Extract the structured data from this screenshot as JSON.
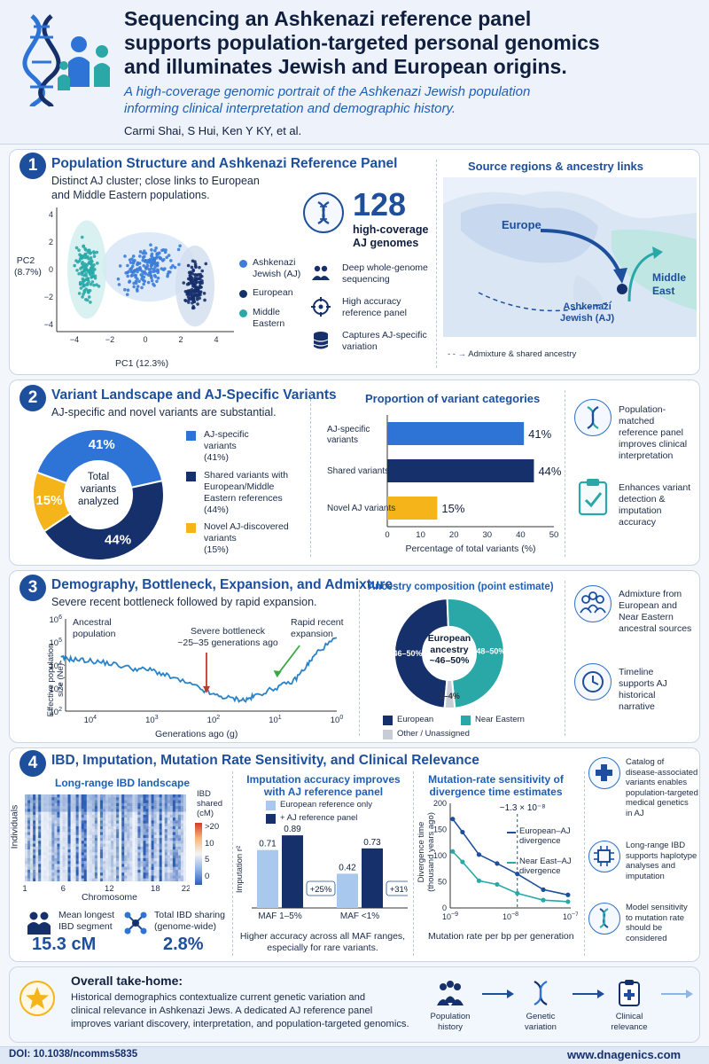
{
  "header": {
    "title_line1": "Sequencing an Ashkenazi reference panel",
    "title_line2": "supports population-targeted personal genomics",
    "title_line3": "and illuminates Jewish and European origins.",
    "subtitle_line1": "A high-coverage genomic portrait of the Ashkenazi Jewish population",
    "subtitle_line2": "informing clinical interpretation and demographic history.",
    "authors": "Carmi Shai, S Hui, Ken Y KY, et al.",
    "logo_icon": "dna-family-icon"
  },
  "section1": {
    "number": "1",
    "title": "Population Structure and Ashkenazi Reference Panel",
    "desc_line1": "Distinct AJ cluster; close links to European",
    "desc_line2": "and Middle Eastern populations.",
    "pca": {
      "ylabel_line1": "PC2",
      "ylabel_line2": "(8.7%)",
      "xlabel": "PC1 (12.3%)",
      "yticks": [
        "4",
        "2",
        "0",
        "−2",
        "−4"
      ],
      "xticks": [
        "−4",
        "−2",
        "0",
        "2",
        "4"
      ],
      "legend": [
        {
          "line1": "Ashkenazi",
          "line2": "Jewish (AJ)",
          "color": "#3b7dd8"
        },
        {
          "line1": "European",
          "line2": "",
          "color": "#16306b"
        },
        {
          "line1": "Middle",
          "line2": "Eastern",
          "color": "#2aa8a8"
        }
      ]
    },
    "stat_number": "128",
    "stat_label_line1": "high-coverage",
    "stat_label_line2": "AJ genomes",
    "features": [
      {
        "icon": "people-icon",
        "line1": "Deep whole-genome",
        "line2": "sequencing"
      },
      {
        "icon": "target-icon",
        "line1": "High accuracy",
        "line2": "reference panel"
      },
      {
        "icon": "database-icon",
        "line1": "Captures AJ-specific",
        "line2": "variation"
      }
    ],
    "map": {
      "title": "Source regions & ancestry links",
      "europe": "Europe",
      "middle_east_line1": "Middle",
      "middle_east_line2": "East",
      "aj_line1": "Ashkenazi",
      "aj_line2": "Jewish (AJ)",
      "legend": "Admixture & shared ancestry"
    }
  },
  "section2": {
    "number": "2",
    "title": "Variant Landscape and AJ-Specific Variants",
    "desc": "AJ-specific and novel variants are substantial.",
    "donut": {
      "center_line1": "Total",
      "center_line2": "variants",
      "center_line3": "analyzed",
      "labels": [
        "41%",
        "44%",
        "15%"
      ]
    },
    "legend": [
      {
        "lines": [
          "AJ-specific",
          "variants",
          "(41%)"
        ],
        "color": "#2d74d6"
      },
      {
        "lines": [
          "Shared variants with",
          "European/Middle",
          "Eastern references",
          "(44%)"
        ],
        "color": "#16306b"
      },
      {
        "lines": [
          "Novel AJ-discovered",
          "variants",
          "(15%)"
        ],
        "color": "#f4b41a"
      }
    ],
    "bar_title": "Proportion of variant categories",
    "bar_xlabel": "Percentage of total variants (%)",
    "bar_xticks": [
      "0",
      "10",
      "20",
      "30",
      "40",
      "50"
    ],
    "bar_cat_lines": [
      [
        "AJ-specific",
        "variants"
      ],
      [
        "Shared variants"
      ],
      [
        "Novel AJ variants"
      ]
    ],
    "benefits": [
      {
        "icon": "dna-icon",
        "lines": [
          "Population-matched",
          "reference panel",
          "improves clinical",
          "interpretation"
        ]
      },
      {
        "icon": "clipboard-check-icon",
        "lines": [
          "Enhances variant",
          "detection &",
          "imputation",
          "accuracy"
        ]
      }
    ]
  },
  "section3": {
    "number": "3",
    "title": "Demography, Bottleneck, Expansion, and Admixture",
    "desc": "Severe recent bottleneck followed by rapid expansion.",
    "ne": {
      "ylabel_line1": "Effective population",
      "ylabel_line2": "size (Ne)",
      "xlabel": "Generations ago (g)",
      "ytick_exps": [
        "6",
        "5",
        "4",
        "3",
        "2"
      ],
      "xtick_exps": [
        "4",
        "3",
        "2",
        "1",
        "0"
      ],
      "tick_base": "10",
      "ann_ancestral_line1": "Ancestral",
      "ann_ancestral_line2": "population",
      "ann_bottleneck_line1": "Severe bottleneck",
      "ann_bottleneck_line2": "~25–35 generations ago",
      "ann_expansion_line1": "Rapid recent",
      "ann_expansion_line2": "expansion"
    },
    "anc_title": "Ancestry composition (point estimate)",
    "anc_center_line1": "European",
    "anc_center_line2": "ancestry",
    "anc_center_line3": "~46–50%",
    "anc_labels": [
      "46–50%",
      "48–50%",
      "2–4%"
    ],
    "anc_legend": [
      {
        "label": "European",
        "color": "#16306b"
      },
      {
        "label": "Near Eastern",
        "color": "#2aa8a8"
      },
      {
        "label": "Other / Unassigned",
        "color": "#c8ccd4"
      }
    ],
    "notes": [
      {
        "icon": "group-icon",
        "lines": [
          "Admixture from",
          "European and",
          "Near Eastern",
          "ancestral sources"
        ]
      },
      {
        "icon": "clock-icon",
        "lines": [
          "Timeline",
          "supports AJ",
          "historical",
          "narrative"
        ]
      }
    ]
  },
  "section4": {
    "number": "4",
    "title": "IBD, Imputation, Mutation Rate Sensitivity, and Clinical Relevance",
    "ibd": {
      "title": "Long-range IBD landscape",
      "ylabel": "Individuals",
      "xlabel": "Chromosome",
      "xticks": [
        "1",
        "6",
        "12",
        "18",
        "22"
      ],
      "cbar_title_line1": "IBD",
      "cbar_title_line2": "shared",
      "cbar_title_line3": "(cM)",
      "cbar_ticks": [
        ">20",
        "10",
        "5",
        "0"
      ]
    },
    "stat1_icon": "people-icon",
    "stat1_line1": "Mean longest",
    "stat1_line2": "IBD segment",
    "stat1_value": "15.3 cM",
    "stat2_icon": "network-icon",
    "stat2_line1": "Total IBD sharing",
    "stat2_line2": "(genome-wide)",
    "stat2_value": "2.8%",
    "imp": {
      "title_line1": "Imputation accuracy improves",
      "title_line2": "with AJ reference panel",
      "legend": [
        "European reference only",
        "+ AJ reference panel"
      ],
      "ylabel": "Imputation r²",
      "cats": [
        "MAF 1–5%",
        "MAF <1%"
      ],
      "gain_labels": [
        "+25%",
        "+31%"
      ],
      "caption_line1": "Higher accuracy across all MAF ranges,",
      "caption_line2": "especially for rare variants."
    },
    "mut": {
      "title_line1": "Mutation-rate sensitivity of",
      "title_line2": "divergence time estimates",
      "ylabel_line1": "Divergence time",
      "ylabel_line2": "(thousand years ago)",
      "xlabel": "Mutation rate per bp per generation",
      "yticks": [
        "200",
        "150",
        "100",
        "50",
        "0"
      ],
      "xtick_exps": [
        "−9",
        "−8",
        "−7"
      ],
      "tick_base": "10",
      "ref_label": "~1.3 × 10⁻⁸",
      "legend1_line1": "European–AJ",
      "legend1_line2": "divergence",
      "legend2_line1": "Near East–AJ",
      "legend2_line2": "divergence"
    },
    "notes": [
      {
        "icon": "medical-cross-icon",
        "lines": [
          "Catalog of",
          "disease-associated",
          "variants enables",
          "population-targeted",
          "medical genetics",
          "in AJ"
        ]
      },
      {
        "icon": "chip-icon",
        "lines": [
          "Long-range IBD",
          "supports haplotype",
          "analyses and",
          "imputation"
        ]
      },
      {
        "icon": "dna-icon",
        "lines": [
          "Model sensitivity",
          "to mutation rate",
          "should be",
          "considered"
        ]
      }
    ]
  },
  "takehome": {
    "title": "Overall take-home:",
    "line1": "Historical demographics contextualize current genetic variation and",
    "line2": "clinical relevance in Ashkenazi Jews. A dedicated AJ reference panel",
    "line3": "improves variant discovery, interpretation, and population-targeted genomics.",
    "flow": [
      {
        "icon": "group-icon",
        "line1": "Population",
        "line2": "history"
      },
      {
        "icon": "dna-icon",
        "line1": "Genetic",
        "line2": "variation"
      },
      {
        "icon": "clipboard-medical-icon",
        "line1": "Clinical",
        "line2": "relevance"
      }
    ]
  },
  "footer": {
    "doi": "DOI: 10.1038/ncomms5835",
    "site": "www.dnagenics.com"
  },
  "colors": {
    "navy": "#16306b",
    "blue": "#2d74d6",
    "teal": "#2aa8a8",
    "gold": "#f4b41a",
    "title_blue": "#1d4f9c"
  },
  "chart_data": [
    {
      "type": "scatter",
      "xlabel": "PC1 (12.3%)",
      "ylabel": "PC2 (8.7%)",
      "xlim": [
        -5,
        5
      ],
      "ylim": [
        -4.5,
        4.5
      ],
      "series": [
        {
          "name": "Ashkenazi Jewish (AJ)",
          "cluster_center": [
            0.2,
            0.2
          ]
        },
        {
          "name": "European",
          "cluster_center": [
            2.8,
            -1.2
          ]
        },
        {
          "name": "Middle Eastern",
          "cluster_center": [
            -3.3,
            0.0
          ]
        }
      ]
    },
    {
      "type": "pie",
      "categories": [
        "AJ-specific variants",
        "Shared variants with European/Middle Eastern references",
        "Novel AJ-discovered variants"
      ],
      "values": [
        41,
        44,
        15
      ]
    },
    {
      "type": "bar",
      "categories": [
        "AJ-specific variants",
        "Shared variants",
        "Novel AJ variants"
      ],
      "values": [
        41,
        44,
        15
      ],
      "xlabel": "Percentage of total variants (%)",
      "xlim": [
        0,
        50
      ]
    },
    {
      "type": "line",
      "xlabel": "Generations ago (g)",
      "ylabel": "Effective population size (Ne)",
      "log_x": true,
      "log_y": true,
      "x": [
        30000,
        20000,
        10000,
        5000,
        2000,
        1000,
        500,
        200,
        100,
        50,
        30,
        20,
        10,
        5,
        3,
        2,
        1
      ],
      "y": [
        20000,
        18000,
        15000,
        12000,
        7000,
        6000,
        3000,
        1200,
        500,
        350,
        300,
        500,
        1000,
        2000,
        10000,
        40000,
        150000
      ]
    },
    {
      "type": "pie",
      "categories": [
        "European",
        "Near Eastern",
        "Other / Unassigned"
      ],
      "values": [
        48,
        49,
        3
      ]
    },
    {
      "type": "heatmap",
      "xlabel": "Chromosome",
      "ylabel": "Individuals",
      "colorbar": [
        "0",
        "5",
        "10",
        ">20"
      ]
    },
    {
      "type": "bar",
      "categories": [
        "MAF 1–5%",
        "MAF <1%"
      ],
      "series": [
        {
          "name": "European reference only",
          "values": [
            0.71,
            0.42
          ]
        },
        {
          "name": "+ AJ reference panel",
          "values": [
            0.89,
            0.73
          ]
        }
      ],
      "ylabel": "Imputation r²",
      "ylim": [
        0,
        1.0
      ]
    },
    {
      "type": "line",
      "xlabel": "Mutation rate per bp per generation",
      "ylabel": "Divergence time (thousand years ago)",
      "log_x": true,
      "xlim": [
        1e-09,
        1e-07
      ],
      "ylim": [
        0,
        200
      ],
      "x": [
        1.1e-09,
        1.6e-09,
        3e-09,
        6e-09,
        1.3e-08,
        3.5e-08,
        9e-08
      ],
      "series": [
        {
          "name": "European–AJ divergence",
          "values": [
            170,
            145,
            102,
            85,
            65,
            35,
            25
          ]
        },
        {
          "name": "Near East–AJ divergence",
          "values": [
            108,
            88,
            52,
            45,
            28,
            15,
            12
          ]
        }
      ]
    }
  ]
}
